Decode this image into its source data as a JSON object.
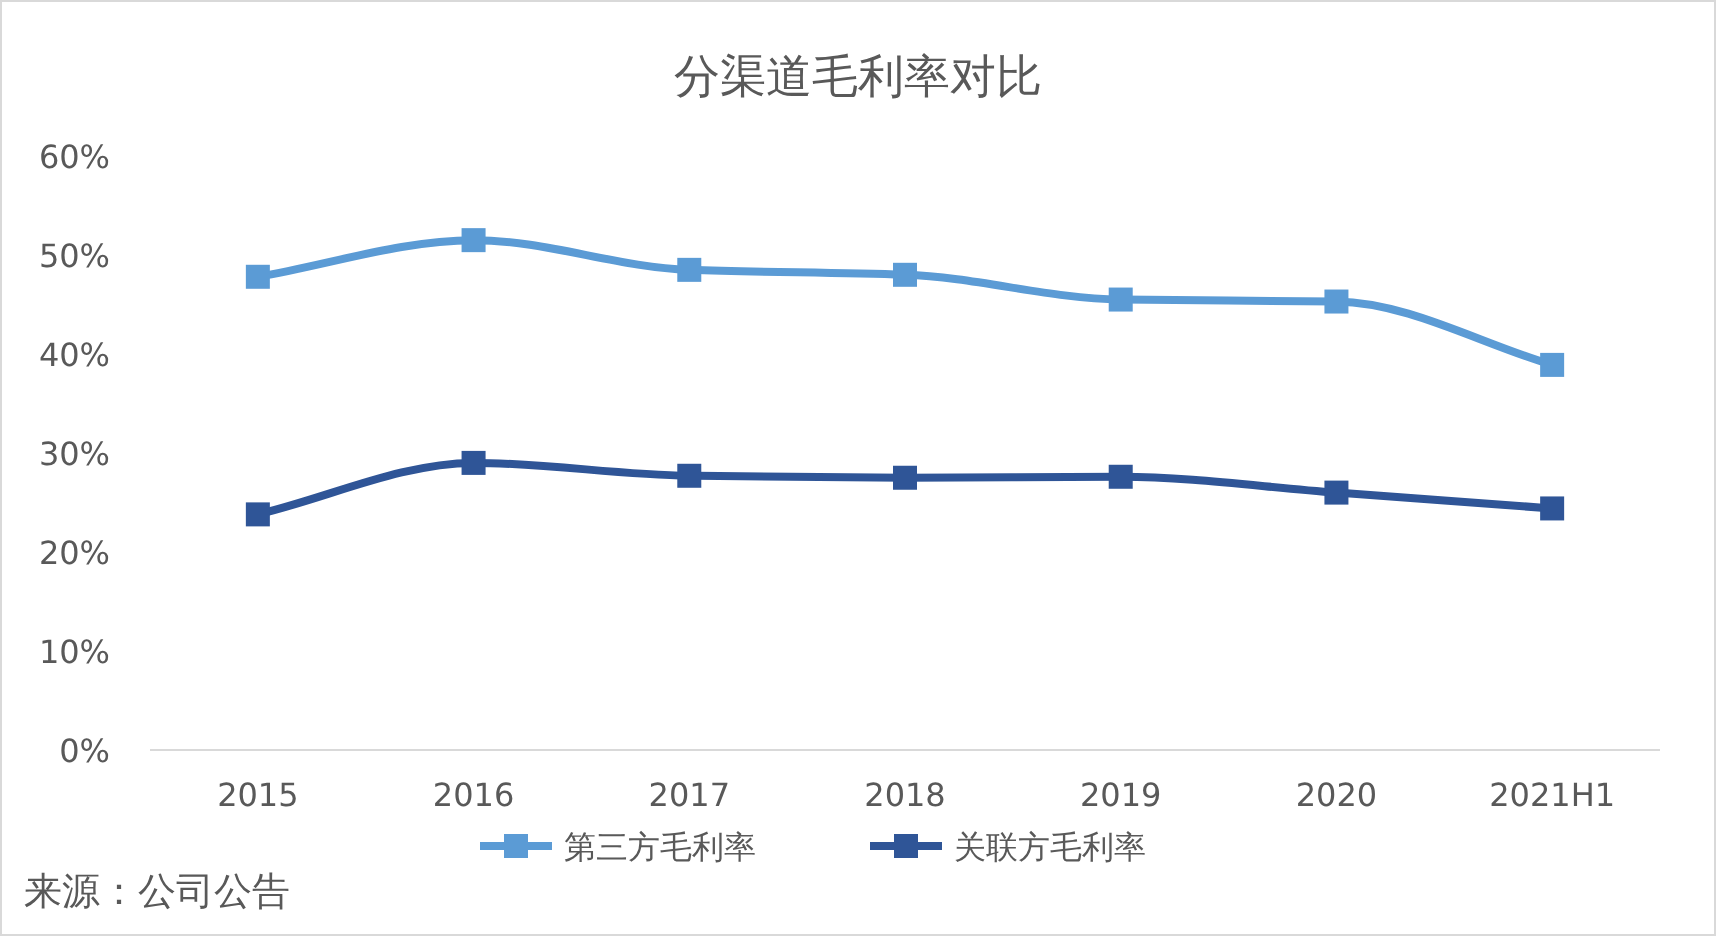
{
  "chart_data": {
    "type": "line",
    "title": "分渠道毛利率对比",
    "categories": [
      "2015",
      "2016",
      "2017",
      "2018",
      "2019",
      "2020",
      "2021H1"
    ],
    "series": [
      {
        "name": "第三方毛利率",
        "color": "#5b9bd5",
        "values": [
          47.8,
          51.5,
          48.5,
          48.0,
          45.5,
          45.3,
          38.9
        ]
      },
      {
        "name": "关联方毛利率",
        "color": "#2f5597",
        "values": [
          23.8,
          29.0,
          27.7,
          27.5,
          27.6,
          26.0,
          24.4
        ]
      }
    ],
    "ylim": [
      0,
      60
    ],
    "yticks": [
      {
        "value": 0,
        "label": "0%"
      },
      {
        "value": 10,
        "label": "10%"
      },
      {
        "value": 20,
        "label": "20%"
      },
      {
        "value": 30,
        "label": "30%"
      },
      {
        "value": 40,
        "label": "40%"
      },
      {
        "value": 50,
        "label": "50%"
      },
      {
        "value": 60,
        "label": "60%"
      }
    ],
    "marker": "square",
    "legend": "bottom",
    "annotations": [
      "来源：公司公告"
    ]
  }
}
